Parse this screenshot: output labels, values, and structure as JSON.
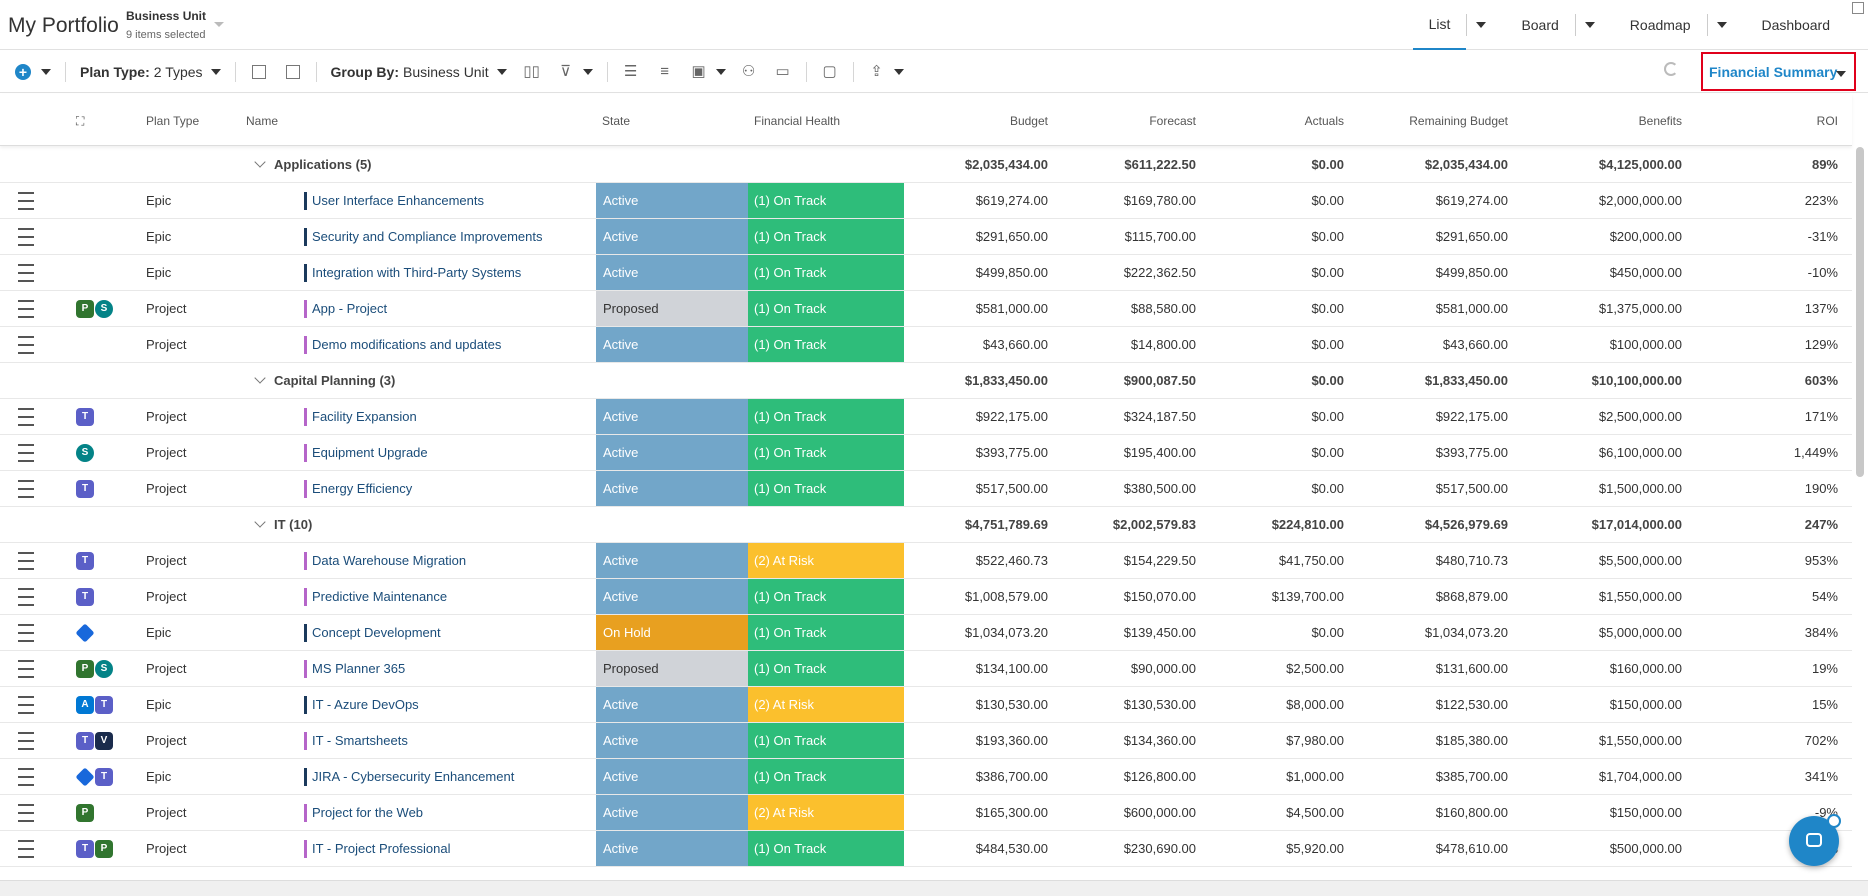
{
  "app": {
    "title": "My Portfolio"
  },
  "business_unit": {
    "label": "Business Unit",
    "sub": "9 items selected"
  },
  "view_tabs": [
    {
      "label": "List",
      "active": true
    },
    {
      "label": "Board",
      "active": false
    },
    {
      "label": "Roadmap",
      "active": false
    },
    {
      "label": "Dashboard",
      "active": false
    }
  ],
  "toolbar": {
    "plan_type_label": "Plan Type:",
    "plan_type_value": "2 Types",
    "group_by_label": "Group By:",
    "group_by_value": "Business Unit",
    "view_selector": "Financial Summary"
  },
  "columns": {
    "plan_type": "Plan Type",
    "name": "Name",
    "state": "State",
    "financial_health": "Financial Health",
    "budget": "Budget",
    "forecast": "Forecast",
    "actuals": "Actuals",
    "remaining": "Remaining Budget",
    "benefits": "Benefits",
    "roi": "ROI"
  },
  "rows": [
    {
      "kind": "group",
      "name": "Applications (5)",
      "budget": "$2,035,434.00",
      "forecast": "$611,222.50",
      "actuals": "$0.00",
      "remaining": "$2,035,434.00",
      "benefits": "$4,125,000.00",
      "roi": "89%"
    },
    {
      "kind": "item",
      "plan": "Epic",
      "icons": [],
      "bar": "#1b3a5c",
      "name": "User Interface Enhancements",
      "state": "Active",
      "health": "(1) On Track",
      "budget": "$619,274.00",
      "forecast": "$169,780.00",
      "actuals": "$0.00",
      "remaining": "$619,274.00",
      "benefits": "$2,000,000.00",
      "roi": "223%"
    },
    {
      "kind": "item",
      "plan": "Epic",
      "icons": [],
      "bar": "#1b3a5c",
      "name": "Security and Compliance Improvements",
      "state": "Active",
      "health": "(1) On Track",
      "budget": "$291,650.00",
      "forecast": "$115,700.00",
      "actuals": "$0.00",
      "remaining": "$291,650.00",
      "benefits": "$200,000.00",
      "roi": "-31%"
    },
    {
      "kind": "item",
      "plan": "Epic",
      "icons": [],
      "bar": "#1b3a5c",
      "name": "Integration with Third-Party Systems",
      "state": "Active",
      "health": "(1) On Track",
      "budget": "$499,850.00",
      "forecast": "$222,362.50",
      "actuals": "$0.00",
      "remaining": "$499,850.00",
      "benefits": "$450,000.00",
      "roi": "-10%"
    },
    {
      "kind": "item",
      "plan": "Project",
      "icons": [
        "planner",
        "share"
      ],
      "bar": "#b565c9",
      "name": "App - Project",
      "state": "Proposed",
      "health": "(1) On Track",
      "budget": "$581,000.00",
      "forecast": "$88,580.00",
      "actuals": "$0.00",
      "remaining": "$581,000.00",
      "benefits": "$1,375,000.00",
      "roi": "137%"
    },
    {
      "kind": "item",
      "plan": "Project",
      "icons": [],
      "bar": "#b565c9",
      "name": "Demo modifications and updates",
      "state": "Active",
      "health": "(1) On Track",
      "budget": "$43,660.00",
      "forecast": "$14,800.00",
      "actuals": "$0.00",
      "remaining": "$43,660.00",
      "benefits": "$100,000.00",
      "roi": "129%"
    },
    {
      "kind": "group",
      "name": "Capital Planning (3)",
      "budget": "$1,833,450.00",
      "forecast": "$900,087.50",
      "actuals": "$0.00",
      "remaining": "$1,833,450.00",
      "benefits": "$10,100,000.00",
      "roi": "603%"
    },
    {
      "kind": "item",
      "plan": "Project",
      "icons": [
        "teams"
      ],
      "bar": "#b565c9",
      "name": "Facility Expansion",
      "state": "Active",
      "health": "(1) On Track",
      "budget": "$922,175.00",
      "forecast": "$324,187.50",
      "actuals": "$0.00",
      "remaining": "$922,175.00",
      "benefits": "$2,500,000.00",
      "roi": "171%"
    },
    {
      "kind": "item",
      "plan": "Project",
      "icons": [
        "share"
      ],
      "bar": "#b565c9",
      "name": "Equipment Upgrade",
      "state": "Active",
      "health": "(1) On Track",
      "budget": "$393,775.00",
      "forecast": "$195,400.00",
      "actuals": "$0.00",
      "remaining": "$393,775.00",
      "benefits": "$6,100,000.00",
      "roi": "1,449%"
    },
    {
      "kind": "item",
      "plan": "Project",
      "icons": [
        "teams"
      ],
      "bar": "#b565c9",
      "name": "Energy Efficiency",
      "state": "Active",
      "health": "(1) On Track",
      "budget": "$517,500.00",
      "forecast": "$380,500.00",
      "actuals": "$0.00",
      "remaining": "$517,500.00",
      "benefits": "$1,500,000.00",
      "roi": "190%"
    },
    {
      "kind": "group",
      "name": "IT (10)",
      "budget": "$4,751,789.69",
      "forecast": "$2,002,579.83",
      "actuals": "$224,810.00",
      "remaining": "$4,526,979.69",
      "benefits": "$17,014,000.00",
      "roi": "247%"
    },
    {
      "kind": "item",
      "plan": "Project",
      "icons": [
        "teams"
      ],
      "bar": "#b565c9",
      "name": "Data Warehouse Migration",
      "state": "Active",
      "health": "(2) At Risk",
      "budget": "$522,460.73",
      "forecast": "$154,229.50",
      "actuals": "$41,750.00",
      "remaining": "$480,710.73",
      "benefits": "$5,500,000.00",
      "roi": "953%"
    },
    {
      "kind": "item",
      "plan": "Project",
      "icons": [
        "teams"
      ],
      "bar": "#b565c9",
      "name": "Predictive Maintenance",
      "state": "Active",
      "health": "(1) On Track",
      "budget": "$1,008,579.00",
      "forecast": "$150,070.00",
      "actuals": "$139,700.00",
      "remaining": "$868,879.00",
      "benefits": "$1,550,000.00",
      "roi": "54%"
    },
    {
      "kind": "item",
      "plan": "Epic",
      "icons": [
        "jira"
      ],
      "bar": "#1b3a5c",
      "name": "Concept Development",
      "state": "On Hold",
      "health": "(1) On Track",
      "budget": "$1,034,073.20",
      "forecast": "$139,450.00",
      "actuals": "$0.00",
      "remaining": "$1,034,073.20",
      "benefits": "$5,000,000.00",
      "roi": "384%"
    },
    {
      "kind": "item",
      "plan": "Project",
      "icons": [
        "planner",
        "share"
      ],
      "bar": "#b565c9",
      "name": "MS Planner 365",
      "state": "Proposed",
      "health": "(1) On Track",
      "budget": "$134,100.00",
      "forecast": "$90,000.00",
      "actuals": "$2,500.00",
      "remaining": "$131,600.00",
      "benefits": "$160,000.00",
      "roi": "19%"
    },
    {
      "kind": "item",
      "plan": "Epic",
      "icons": [
        "ado",
        "teams"
      ],
      "bar": "#1b3a5c",
      "name": "IT - Azure DevOps",
      "state": "Active",
      "health": "(2) At Risk",
      "budget": "$130,530.00",
      "forecast": "$130,530.00",
      "actuals": "$8,000.00",
      "remaining": "$122,530.00",
      "benefits": "$150,000.00",
      "roi": "15%"
    },
    {
      "kind": "item",
      "plan": "Project",
      "icons": [
        "teams",
        "smart"
      ],
      "bar": "#b565c9",
      "name": "IT - Smartsheets",
      "state": "Active",
      "health": "(1) On Track",
      "budget": "$193,360.00",
      "forecast": "$134,360.00",
      "actuals": "$7,980.00",
      "remaining": "$185,380.00",
      "benefits": "$1,550,000.00",
      "roi": "702%"
    },
    {
      "kind": "item",
      "plan": "Epic",
      "icons": [
        "jira",
        "teams"
      ],
      "bar": "#1b3a5c",
      "name": "JIRA - Cybersecurity Enhancement",
      "state": "Active",
      "health": "(1) On Track",
      "budget": "$386,700.00",
      "forecast": "$126,800.00",
      "actuals": "$1,000.00",
      "remaining": "$385,700.00",
      "benefits": "$1,704,000.00",
      "roi": "341%"
    },
    {
      "kind": "item",
      "plan": "Project",
      "icons": [
        "planner"
      ],
      "bar": "#b565c9",
      "name": "Project for the Web",
      "state": "Active",
      "health": "(2) At Risk",
      "budget": "$165,300.00",
      "forecast": "$600,000.00",
      "actuals": "$4,500.00",
      "remaining": "$160,800.00",
      "benefits": "$150,000.00",
      "roi": "-9%"
    },
    {
      "kind": "item",
      "plan": "Project",
      "icons": [
        "teams",
        "planner"
      ],
      "bar": "#b565c9",
      "name": "IT - Project Professional",
      "state": "Active",
      "health": "(1) On Track",
      "budget": "$484,530.00",
      "forecast": "$230,690.00",
      "actuals": "$5,920.00",
      "remaining": "$478,610.00",
      "benefits": "$500,000.00",
      "roi": "%"
    }
  ]
}
